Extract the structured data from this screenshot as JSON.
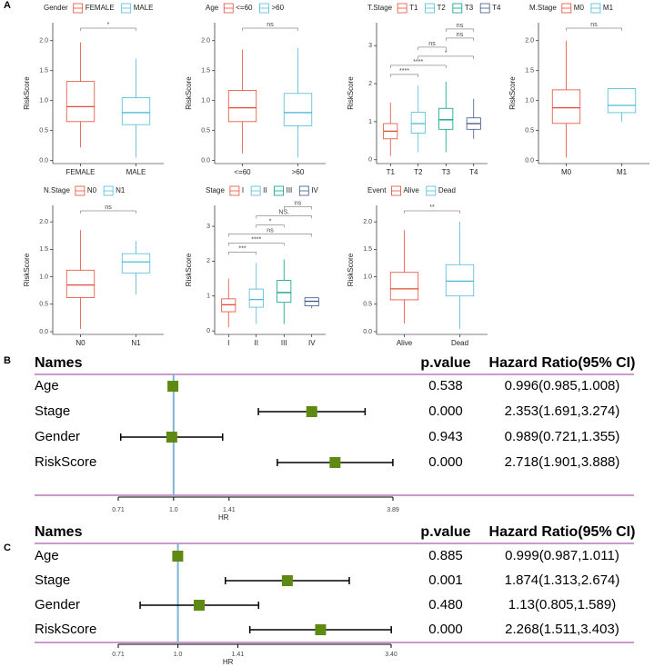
{
  "panels": [
    "A",
    "B",
    "C"
  ],
  "chart_data": [
    {
      "type": "box",
      "legend_title": "Gender",
      "categories": [
        "FEMALE",
        "MALE"
      ],
      "colors": [
        "#E64B35",
        "#4DBBD5"
      ],
      "ylabel": "RiskScore",
      "ylim": [
        -0.05,
        2.3
      ],
      "yticks": [
        {
          "value": 0,
          "label": "0.0"
        },
        0.5,
        {
          "value": 1,
          "label": "1.0"
        },
        1.5,
        {
          "value": 2,
          "label": "2.0"
        }
      ],
      "boxes": [
        {
          "low": 0.22,
          "q1": 0.65,
          "median": 0.9,
          "q3": 1.32,
          "high": 1.97
        },
        {
          "low": 0.05,
          "q1": 0.6,
          "median": 0.8,
          "q3": 1.05,
          "high": 1.7
        }
      ],
      "comparisons": [
        {
          "groups": [
            0,
            1
          ],
          "label": "*"
        }
      ]
    },
    {
      "type": "box",
      "legend_title": "Age",
      "categories": [
        "<=60",
        ">60"
      ],
      "colors": [
        "#E64B35",
        "#4DBBD5"
      ],
      "ylabel": "RiskScore",
      "ylim": [
        -0.05,
        2.3
      ],
      "yticks": [
        {
          "value": 0,
          "label": "0.0"
        },
        0.5,
        {
          "value": 1,
          "label": "1.0"
        },
        1.5,
        {
          "value": 2,
          "label": "2.0"
        }
      ],
      "boxes": [
        {
          "low": 0.12,
          "q1": 0.65,
          "median": 0.88,
          "q3": 1.17,
          "high": 1.85
        },
        {
          "low": 0.05,
          "q1": 0.58,
          "median": 0.8,
          "q3": 1.12,
          "high": 1.88
        }
      ],
      "comparisons": [
        {
          "groups": [
            0,
            1
          ],
          "label": "ns"
        }
      ]
    },
    {
      "type": "box",
      "legend_title": "T.Stage",
      "categories": [
        "T1",
        "T2",
        "T3",
        "T4"
      ],
      "colors": [
        "#E64B35",
        "#4DBBD5",
        "#00A087",
        "#3C5488"
      ],
      "ylabel": "RiskScore",
      "ylim": [
        -0.1,
        3.6
      ],
      "yticks": [
        0,
        1,
        2,
        3
      ],
      "boxes": [
        {
          "low": 0.1,
          "q1": 0.55,
          "median": 0.75,
          "q3": 0.95,
          "high": 1.5
        },
        {
          "low": 0.2,
          "q1": 0.7,
          "median": 0.95,
          "q3": 1.25,
          "high": 1.95
        },
        {
          "low": 0.2,
          "q1": 0.8,
          "median": 1.05,
          "q3": 1.35,
          "high": 2.05
        },
        {
          "low": 0.55,
          "q1": 0.8,
          "median": 0.95,
          "q3": 1.1,
          "high": 1.6
        }
      ],
      "comparisons": [
        {
          "groups": [
            0,
            1
          ],
          "label": "****"
        },
        {
          "groups": [
            0,
            2
          ],
          "label": "****"
        },
        {
          "groups": [
            1,
            3
          ],
          "label": "*"
        },
        {
          "groups": [
            1,
            2
          ],
          "label": "ns"
        },
        {
          "groups": [
            2,
            3
          ],
          "label": "ns"
        },
        {
          "groups": [
            2,
            3
          ],
          "label": "ns"
        }
      ]
    },
    {
      "type": "box",
      "legend_title": "M.Stage",
      "categories": [
        "M0",
        "M1"
      ],
      "colors": [
        "#E64B35",
        "#4DBBD5"
      ],
      "ylabel": "RiskScore",
      "ylim": [
        -0.05,
        2.3
      ],
      "yticks": [
        {
          "value": 0,
          "label": "0.0"
        },
        0.5,
        {
          "value": 1,
          "label": "1.0"
        },
        1.5,
        {
          "value": 2,
          "label": "2.0"
        }
      ],
      "boxes": [
        {
          "low": 0.05,
          "q1": 0.62,
          "median": 0.88,
          "q3": 1.18,
          "high": 2.0
        },
        {
          "low": 0.65,
          "q1": 0.8,
          "median": 0.92,
          "q3": 1.2,
          "high": 1.2
        }
      ],
      "comparisons": [
        {
          "groups": [
            0,
            1
          ],
          "label": "ns"
        }
      ]
    },
    {
      "type": "box",
      "legend_title": "N.Stage",
      "categories": [
        "N0",
        "N1"
      ],
      "colors": [
        "#E64B35",
        "#4DBBD5"
      ],
      "ylabel": "RiskScore",
      "ylim": [
        -0.05,
        2.3
      ],
      "yticks": [
        {
          "value": 0,
          "label": "0.0"
        },
        0.5,
        {
          "value": 1,
          "label": "1.0"
        },
        1.5,
        {
          "value": 2,
          "label": "2.0"
        }
      ],
      "boxes": [
        {
          "low": 0.05,
          "q1": 0.62,
          "median": 0.85,
          "q3": 1.12,
          "high": 1.85
        },
        {
          "low": 0.68,
          "q1": 1.07,
          "median": 1.27,
          "q3": 1.42,
          "high": 1.65
        }
      ],
      "comparisons": [
        {
          "groups": [
            0,
            1
          ],
          "label": "ns"
        }
      ]
    },
    {
      "type": "box",
      "legend_title": "Stage",
      "categories": [
        "I",
        "II",
        "III",
        "IV"
      ],
      "colors": [
        "#E64B35",
        "#4DBBD5",
        "#00A087",
        "#3C5488"
      ],
      "ylabel": "RiskScore",
      "ylim": [
        -0.1,
        3.6
      ],
      "yticks": [
        0,
        1,
        2,
        3
      ],
      "boxes": [
        {
          "low": 0.1,
          "q1": 0.55,
          "median": 0.75,
          "q3": 0.92,
          "high": 1.5
        },
        {
          "low": 0.2,
          "q1": 0.68,
          "median": 0.9,
          "q3": 1.2,
          "high": 1.95
        },
        {
          "low": 0.2,
          "q1": 0.82,
          "median": 1.1,
          "q3": 1.45,
          "high": 2.05
        },
        {
          "low": 0.65,
          "q1": 0.72,
          "median": 0.85,
          "q3": 0.95,
          "high": 0.95
        }
      ],
      "comparisons": [
        {
          "groups": [
            0,
            1
          ],
          "label": "***"
        },
        {
          "groups": [
            0,
            2
          ],
          "label": "****"
        },
        {
          "groups": [
            0,
            3
          ],
          "label": "ns"
        },
        {
          "groups": [
            1,
            2
          ],
          "label": "*"
        },
        {
          "groups": [
            1,
            3
          ],
          "label": "NS."
        },
        {
          "groups": [
            2,
            3
          ],
          "label": "ns"
        }
      ]
    },
    {
      "type": "box",
      "legend_title": "Event",
      "categories": [
        "Alive",
        "Dead"
      ],
      "colors": [
        "#E64B35",
        "#4DBBD5"
      ],
      "ylabel": "RiskScore",
      "ylim": [
        -0.05,
        2.3
      ],
      "yticks": [
        {
          "value": 0,
          "label": "0.0"
        },
        0.5,
        {
          "value": 1,
          "label": "1.0"
        },
        1.5,
        {
          "value": 2,
          "label": "2.0"
        }
      ],
      "boxes": [
        {
          "low": 0.15,
          "q1": 0.58,
          "median": 0.78,
          "q3": 1.08,
          "high": 1.85
        },
        {
          "low": 0.05,
          "q1": 0.65,
          "median": 0.92,
          "q3": 1.22,
          "high": 2.0
        }
      ],
      "comparisons": [
        {
          "groups": [
            0,
            1
          ],
          "label": "**"
        }
      ]
    },
    {
      "type": "forest",
      "columns": [
        "Names",
        "p.value",
        "Hazard Ratio(95% CI)"
      ],
      "xlabel": "HR",
      "log": true,
      "color": "#5E8A12",
      "ref_color": "#7FB3D5",
      "rule_color": "#993399",
      "xlim": [
        0.71,
        3.89
      ],
      "xticks": [
        0.71,
        {
          "value": 1,
          "label": "1.0"
        },
        1.41,
        3.89
      ],
      "rows": [
        {
          "name": "Age",
          "p": "0.538",
          "hr_label": "0.996(0.985,1.008)",
          "hr": 0.996,
          "lo": 0.985,
          "hi": 1.008
        },
        {
          "name": "Stage",
          "p": "0.000",
          "hr_label": "2.353(1.691,3.274)",
          "hr": 2.353,
          "lo": 1.691,
          "hi": 3.274
        },
        {
          "name": "Gender",
          "p": "0.943",
          "hr_label": "0.989(0.721,1.355)",
          "hr": 0.989,
          "lo": 0.721,
          "hi": 1.355
        },
        {
          "name": "RiskScore",
          "p": "0.000",
          "hr_label": "2.718(1.901,3.888)",
          "hr": 2.718,
          "lo": 1.901,
          "hi": 3.888
        }
      ]
    },
    {
      "type": "forest",
      "columns": [
        "Names",
        "p.value",
        "Hazard Ratio(95% CI)"
      ],
      "xlabel": "HR",
      "log": true,
      "color": "#5E8A12",
      "ref_color": "#7FB3D5",
      "rule_color": "#993399",
      "xlim": [
        0.71,
        3.4
      ],
      "xticks": [
        0.71,
        {
          "value": 1,
          "label": "1.0"
        },
        1.41,
        {
          "value": 3.4,
          "label": "3.40"
        }
      ],
      "rows": [
        {
          "name": "Age",
          "p": "0.885",
          "hr_label": "0.999(0.987,1.011)",
          "hr": 0.999,
          "lo": 0.987,
          "hi": 1.011
        },
        {
          "name": "Stage",
          "p": "0.001",
          "hr_label": "1.874(1.313,2.674)",
          "hr": 1.874,
          "lo": 1.313,
          "hi": 2.674
        },
        {
          "name": "Gender",
          "p": "0.480",
          "hr_label": "1.13(0.805,1.589)",
          "hr": 1.13,
          "lo": 0.805,
          "hi": 1.589
        },
        {
          "name": "RiskScore",
          "p": "0.000",
          "hr_label": "2.268(1.511,3.403)",
          "hr": 2.268,
          "lo": 1.511,
          "hi": 3.403
        }
      ]
    }
  ]
}
